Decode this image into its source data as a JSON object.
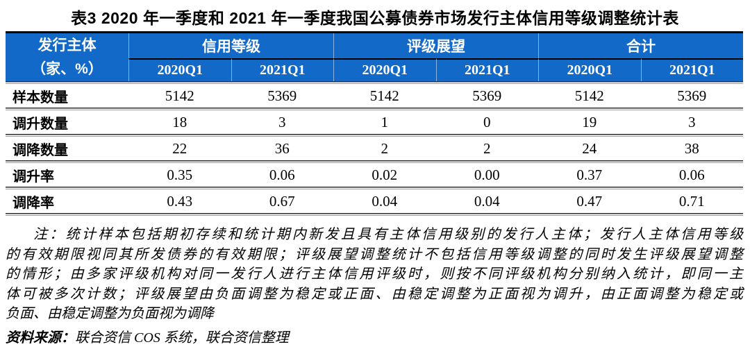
{
  "title": "表3 2020 年一季度和 2021 年一季度我国公募债券市场发行主体信用等级调整统计表",
  "colors": {
    "header_blue": "#1269c7",
    "separator_dark": "#2d2d2d",
    "separator_light": "#9e9e9e"
  },
  "table": {
    "corner": {
      "line1": "发行主体",
      "line2": "（家、%）"
    },
    "groups": [
      "信用等级",
      "评级展望",
      "合计"
    ],
    "sub_headers": [
      "2020Q1",
      "2021Q1",
      "2020Q1",
      "2021Q1",
      "2020Q1",
      "2021Q1"
    ],
    "rows": [
      {
        "label": "样本数量",
        "values": [
          "5142",
          "5369",
          "5142",
          "5369",
          "5142",
          "5369"
        ]
      },
      {
        "label": "调升数量",
        "values": [
          "18",
          "3",
          "1",
          "0",
          "19",
          "3"
        ]
      },
      {
        "label": "调降数量",
        "values": [
          "22",
          "36",
          "2",
          "2",
          "24",
          "38"
        ]
      },
      {
        "label": "调升率",
        "values": [
          "0.35",
          "0.06",
          "0.02",
          "0.00",
          "0.37",
          "0.06"
        ]
      },
      {
        "label": "调降率",
        "values": [
          "0.43",
          "0.67",
          "0.04",
          "0.04",
          "0.47",
          "0.71"
        ]
      }
    ]
  },
  "note": {
    "lines": [
      "注：统计样本包括期初存续和统计期内新发且具有主体信用级别的发行人主体；发行人主体信用等级",
      "的有效期限视同其所发债券的有效期限；评级展望调整统计不包括信用等级调整的同时发生评级展望调整",
      "的情形；由多家评级机构对同一发行人进行主体信用评级时，则按不同评级机构分别纳入统计，即同一主",
      "体可被多次计数；评级展望由负面调整为稳定或正面、由稳定调整为正面视为调升，由正面调整为稳定或",
      "负面、由稳定调整为负面视为调降"
    ]
  },
  "source": {
    "label": "资料来源：",
    "text": "联合资信 COS 系统，联合资信整理"
  }
}
